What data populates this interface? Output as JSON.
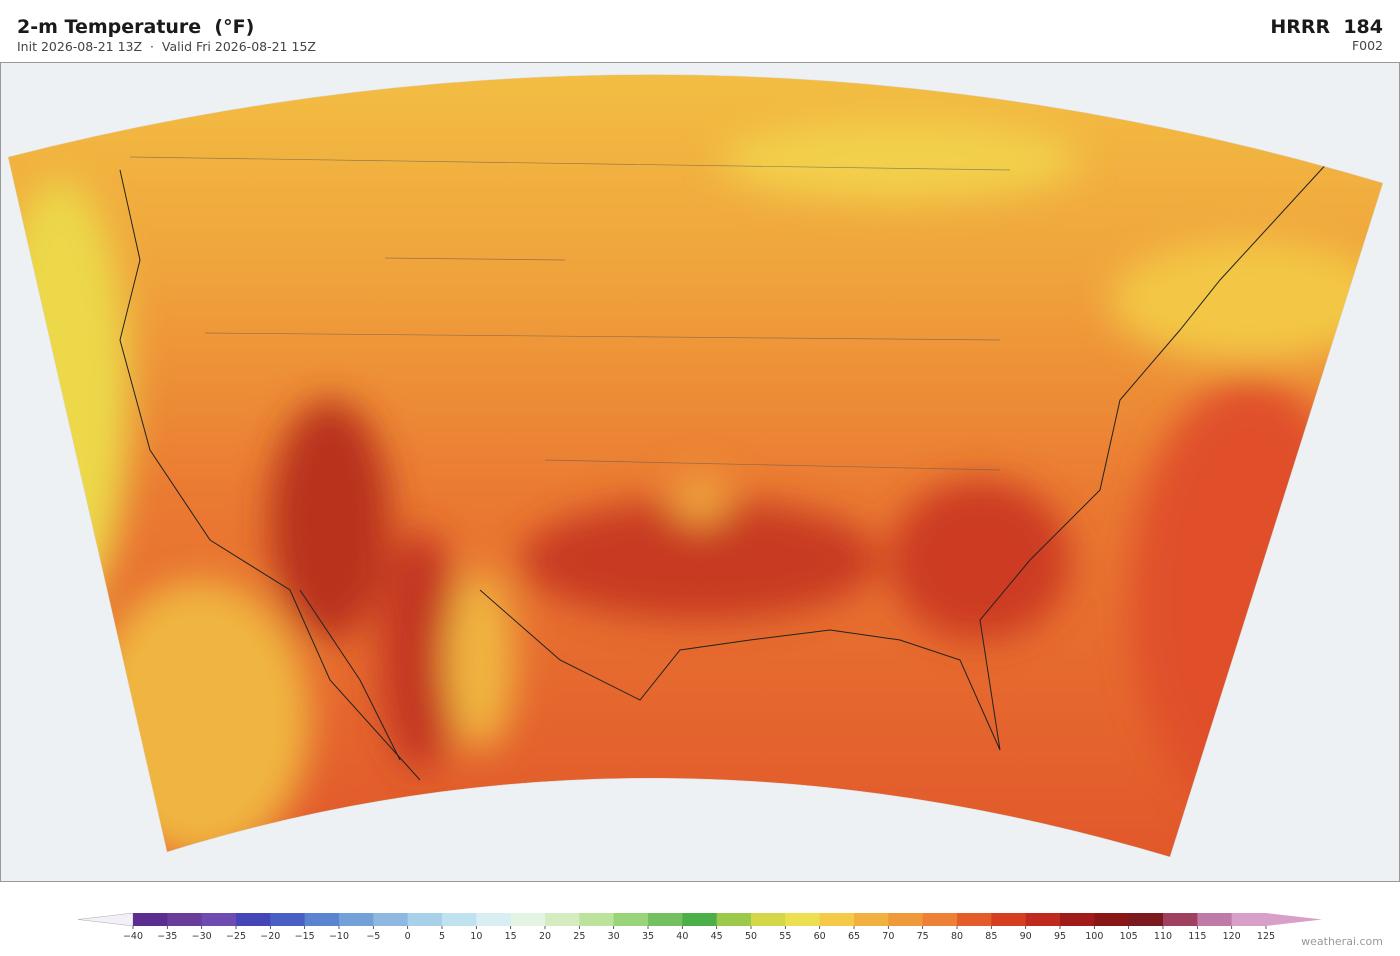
{
  "header": {
    "title": "2-m Temperature  (°F)",
    "subtitle": "Init 2026-08-21 13Z  ·  Valid Fri 2026-08-21 15Z",
    "model": "HRRR  184",
    "forecast_hour": "F002"
  },
  "colorbar": {
    "ticks": [
      {
        "value": -40,
        "label": "−40"
      },
      {
        "value": -35,
        "label": "−35"
      },
      {
        "value": -30,
        "label": "−30"
      },
      {
        "value": -25,
        "label": "−25"
      },
      {
        "value": -20,
        "label": "−20"
      },
      {
        "value": -15,
        "label": "−15"
      },
      {
        "value": -10,
        "label": "−10"
      },
      {
        "value": -5,
        "label": "−5"
      },
      0,
      5,
      10,
      15,
      20,
      25,
      30,
      35,
      40,
      45,
      50,
      55,
      60,
      65,
      70,
      75,
      80,
      85,
      90,
      95,
      100,
      105,
      110,
      115,
      120,
      125
    ],
    "colors": [
      "#5b2d8e",
      "#6a3d9a",
      "#6e4bb0",
      "#4446b8",
      "#4a5fc4",
      "#5b84d0",
      "#74a0d8",
      "#8fb8e0",
      "#a8d0e8",
      "#c0e2ee",
      "#d8eef2",
      "#e4f4e4",
      "#d4ecc0",
      "#bce39c",
      "#9ad47a",
      "#74c060",
      "#4caf4a",
      "#9cc94a",
      "#d4d848",
      "#ece050",
      "#f4ca48",
      "#f2b040",
      "#ee9a3a",
      "#ec8034",
      "#e45c2a",
      "#d63e22",
      "#c02a1e",
      "#a01c1a",
      "#881616",
      "#7a1a1e",
      "#a04060",
      "#c07aa8",
      "#d8a0c8"
    ],
    "under_color": "#f4f0f8",
    "over_color": "#d8a0c8"
  },
  "watermark": "weatherai.com"
}
